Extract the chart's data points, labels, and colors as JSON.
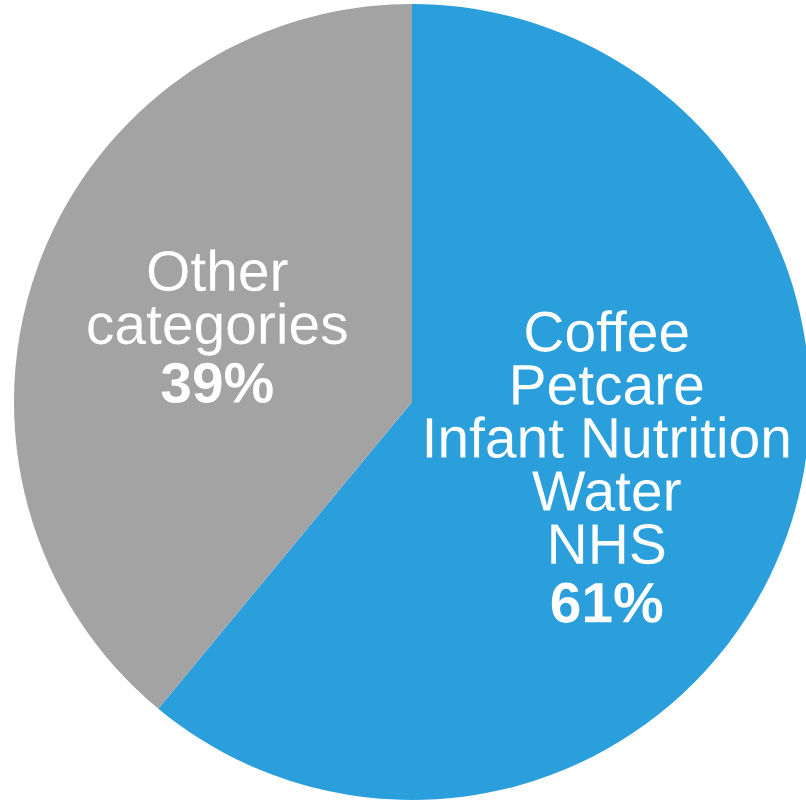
{
  "chart_data": {
    "type": "pie",
    "categories": [
      "Coffee\nPetcare\nInfant Nutrition\nWater\nNHS",
      "Other\ncategories"
    ],
    "values": [
      61,
      39
    ],
    "colors": [
      "#2a9fdc",
      "#a3a3a3"
    ],
    "value_labels": [
      "61%",
      "39%"
    ]
  }
}
